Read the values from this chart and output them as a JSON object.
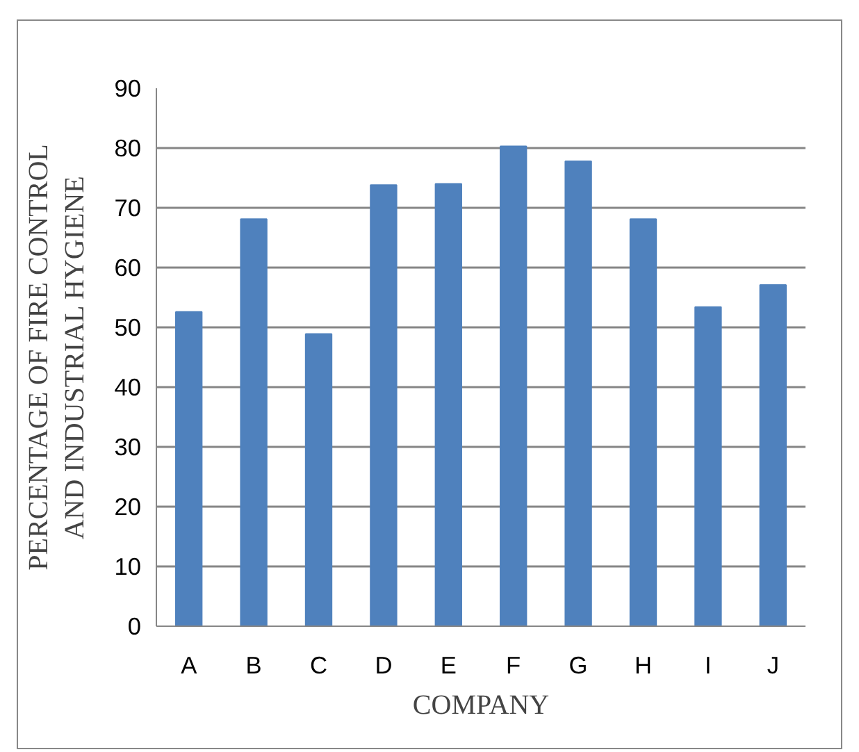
{
  "chart_data": {
    "type": "bar",
    "xlabel": "COMPANY",
    "ylabel": "PERCENTAGE OF FIRE CONTROL\nAND INDUSTRIAL HYGIENE",
    "categories": [
      "A",
      "B",
      "C",
      "D",
      "E",
      "F",
      "G",
      "H",
      "I",
      "J"
    ],
    "values": [
      52.6,
      68.1,
      48.9,
      73.8,
      74.0,
      80.3,
      77.8,
      68.1,
      53.4,
      57.1
    ],
    "color": "#4f81bd",
    "ylim": [
      0,
      90
    ],
    "yticks": [
      0,
      10,
      20,
      30,
      40,
      50,
      60,
      70,
      80,
      90
    ],
    "grid": "y"
  }
}
